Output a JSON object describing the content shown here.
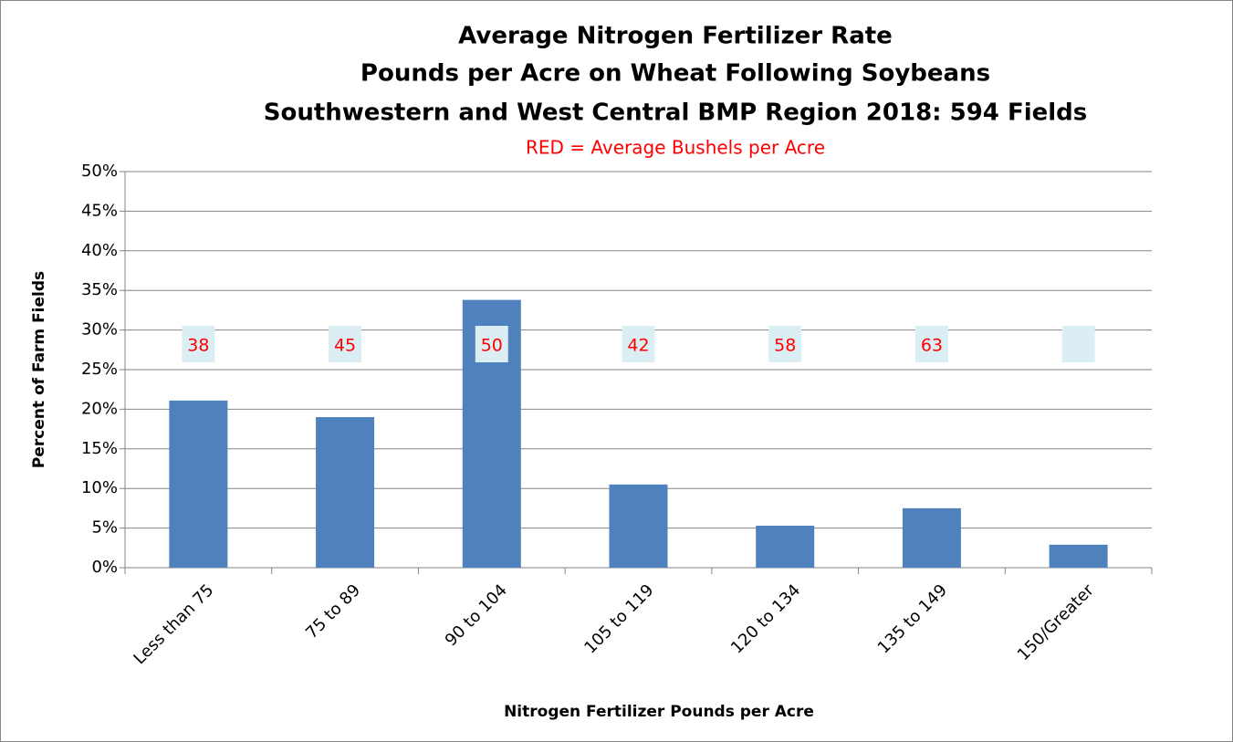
{
  "chart_data": {
    "type": "bar",
    "title": [
      "Average Nitrogen Fertilizer Rate",
      "Pounds per Acre on Wheat Following Soybeans",
      "Southwestern and West Central BMP Region 2018:  594 Fields"
    ],
    "subtitle": "RED = Average Bushels per Acre",
    "x_label": "Nitrogen Fertilizer Pounds per Acre",
    "y_label": "Percent of Farm Fields",
    "categories": [
      "Less than 75",
      "75 to 89",
      "90 to 104",
      "105 to 119",
      "120 to 134",
      "135 to 149",
      "150/Greater"
    ],
    "values": [
      21.1,
      19,
      33.8,
      10.5,
      5.3,
      7.5,
      2.9
    ],
    "color": "#4f81bd",
    "average_bushels": [
      38,
      45,
      50,
      42,
      58,
      63,
      null
    ],
    "ylim": [
      0,
      50
    ],
    "yticks": [
      {
        "value": 0,
        "label": "0%"
      },
      {
        "value": 5,
        "label": "5%"
      },
      {
        "value": 10,
        "label": "10%"
      },
      {
        "value": 15,
        "label": "15%"
      },
      {
        "value": 20,
        "label": "20%"
      },
      {
        "value": 25,
        "label": "25%"
      },
      {
        "value": 30,
        "label": "30%"
      },
      {
        "value": 35,
        "label": "35%"
      },
      {
        "value": 40,
        "label": "40%"
      },
      {
        "value": 45,
        "label": "45%"
      },
      {
        "value": 50,
        "label": "50%"
      }
    ],
    "grid": true
  }
}
